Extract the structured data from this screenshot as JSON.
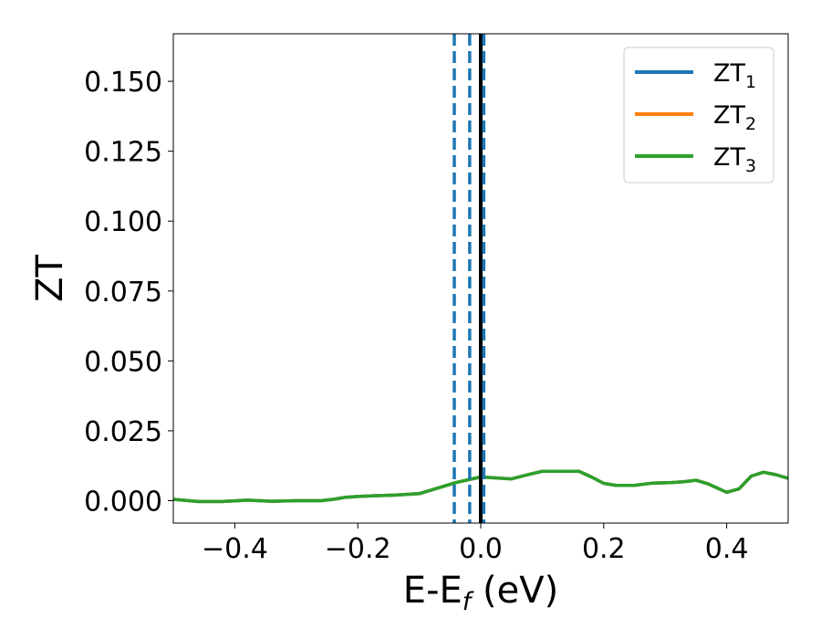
{
  "chart_data": {
    "type": "line",
    "xlabel": {
      "base": "E-E",
      "sub": "f",
      "unit": " (eV)"
    },
    "ylabel": "ZT",
    "xlim": [
      -0.5,
      0.5
    ],
    "ylim": [
      -0.008,
      0.167
    ],
    "x_ticks": [
      -0.4,
      -0.2,
      0.0,
      0.2,
      0.4
    ],
    "x_tick_labels": [
      "−0.4",
      "−0.2",
      "0.0",
      "0.2",
      "0.4"
    ],
    "y_ticks": [
      0.0,
      0.025,
      0.05,
      0.075,
      0.1,
      0.125,
      0.15
    ],
    "y_tick_labels": [
      "0.000",
      "0.025",
      "0.050",
      "0.075",
      "0.100",
      "0.125",
      "0.150"
    ],
    "grid": false,
    "legend_position": "top-right",
    "series": [
      {
        "name": {
          "base": "ZT",
          "sub": "1"
        },
        "color": "#1f77b4",
        "x": [
          -0.5,
          -0.46,
          -0.42,
          -0.38,
          -0.34,
          -0.3,
          -0.26,
          -0.24,
          -0.22,
          -0.2,
          -0.18,
          -0.14,
          -0.1,
          -0.07,
          -0.04,
          -0.02,
          0.0,
          0.02,
          0.05,
          0.08,
          0.1,
          0.13,
          0.16,
          0.18,
          0.2,
          0.22,
          0.25,
          0.28,
          0.31,
          0.33,
          0.35,
          0.37,
          0.4,
          0.42,
          0.44,
          0.46,
          0.48,
          0.5
        ],
        "y": [
          0.0005,
          -0.0003,
          -0.0003,
          0.0002,
          -0.0002,
          0.0,
          0.0,
          0.0005,
          0.0012,
          0.0015,
          0.0017,
          0.002,
          0.0025,
          0.0045,
          0.0065,
          0.0075,
          0.0085,
          0.0082,
          0.0078,
          0.0095,
          0.0105,
          0.0105,
          0.0105,
          0.0085,
          0.0062,
          0.0055,
          0.0055,
          0.0063,
          0.0065,
          0.0068,
          0.0073,
          0.006,
          0.003,
          0.0042,
          0.0088,
          0.0102,
          0.0093,
          0.008
        ]
      },
      {
        "name": {
          "base": "ZT",
          "sub": "2"
        },
        "color": "#ff7f0e",
        "x": [
          -0.5,
          -0.46,
          -0.42,
          -0.38,
          -0.34,
          -0.3,
          -0.26,
          -0.24,
          -0.22,
          -0.2,
          -0.18,
          -0.14,
          -0.1,
          -0.07,
          -0.04,
          -0.02,
          0.0,
          0.02,
          0.05,
          0.08,
          0.1,
          0.13,
          0.16,
          0.18,
          0.2,
          0.22,
          0.25,
          0.28,
          0.31,
          0.33,
          0.35,
          0.37,
          0.4,
          0.42,
          0.44,
          0.46,
          0.48,
          0.5
        ],
        "y": [
          0.0005,
          -0.0003,
          -0.0003,
          0.0002,
          -0.0002,
          0.0,
          0.0,
          0.0005,
          0.0012,
          0.0015,
          0.0017,
          0.002,
          0.0025,
          0.0045,
          0.0065,
          0.0075,
          0.0085,
          0.0082,
          0.0078,
          0.0095,
          0.0105,
          0.0105,
          0.0105,
          0.0085,
          0.0062,
          0.0055,
          0.0055,
          0.0063,
          0.0065,
          0.0068,
          0.0073,
          0.006,
          0.003,
          0.0042,
          0.0088,
          0.0102,
          0.0093,
          0.008
        ]
      },
      {
        "name": {
          "base": "ZT",
          "sub": "3"
        },
        "color": "#2ca02c",
        "x": [
          -0.5,
          -0.46,
          -0.42,
          -0.38,
          -0.34,
          -0.3,
          -0.26,
          -0.24,
          -0.22,
          -0.2,
          -0.18,
          -0.14,
          -0.1,
          -0.07,
          -0.04,
          -0.02,
          0.0,
          0.02,
          0.05,
          0.08,
          0.1,
          0.13,
          0.16,
          0.18,
          0.2,
          0.22,
          0.25,
          0.28,
          0.31,
          0.33,
          0.35,
          0.37,
          0.4,
          0.42,
          0.44,
          0.46,
          0.48,
          0.5
        ],
        "y": [
          0.0005,
          -0.0003,
          -0.0003,
          0.0002,
          -0.0002,
          0.0,
          0.0,
          0.0005,
          0.0012,
          0.0015,
          0.0017,
          0.002,
          0.0025,
          0.0045,
          0.0065,
          0.0075,
          0.0085,
          0.0082,
          0.0078,
          0.0095,
          0.0105,
          0.0105,
          0.0105,
          0.0085,
          0.0062,
          0.0055,
          0.0055,
          0.0063,
          0.0065,
          0.0068,
          0.0073,
          0.006,
          0.003,
          0.0042,
          0.0088,
          0.0102,
          0.0093,
          0.008
        ]
      }
    ],
    "vertical_lines": [
      {
        "x": -0.043,
        "style": "dashed",
        "color": "#1f77b4"
      },
      {
        "x": -0.018,
        "style": "dashed",
        "color": "#1f77b4"
      },
      {
        "x": 0.0,
        "style": "solid",
        "color": "#000000"
      },
      {
        "x": 0.005,
        "style": "dashed",
        "color": "#1f77b4"
      }
    ]
  }
}
